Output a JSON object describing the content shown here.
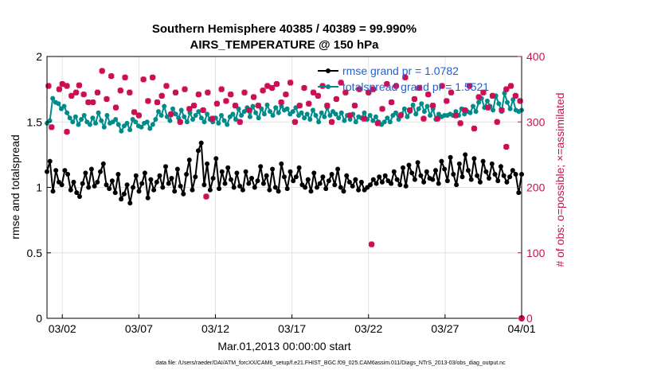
{
  "chart_data": {
    "type": "line",
    "title": "Southern Hemisphere 40385 / 40389 = 99.990%",
    "subtitle": "AIRS_TEMPERATURE @ 150 hPa",
    "xlabel": "Mar.01,2013 00:00:00 start",
    "ylabel_left": "rmse and totalspread",
    "ylabel_right": "# of obs: o=possible; ×=assimilated",
    "xlim": [
      0,
      31
    ],
    "ylim_left": [
      0,
      2
    ],
    "ylim_right": [
      0,
      400
    ],
    "x_ticks": [
      {
        "value": 1,
        "label": "03/02"
      },
      {
        "value": 6,
        "label": "03/07"
      },
      {
        "value": 11,
        "label": "03/12"
      },
      {
        "value": 16,
        "label": "03/17"
      },
      {
        "value": 21,
        "label": "03/22"
      },
      {
        "value": 26,
        "label": "03/27"
      },
      {
        "value": 31,
        "label": "04/01"
      }
    ],
    "y_ticks_left": [
      "0",
      "0.5",
      "1",
      "1.5",
      "2"
    ],
    "y_ticks_right": [
      "0",
      "100",
      "200",
      "300",
      "400"
    ],
    "grid": true,
    "legend_position": "top-right",
    "series": [
      {
        "name": "rmse grand pr = 1.0782",
        "axis": "left",
        "color": "#000000",
        "values": [
          1.12,
          1.2,
          0.97,
          1.13,
          1.04,
          1.02,
          1.13,
          1.1,
          0.98,
          1.04,
          0.96,
          0.93,
          1.03,
          1.11,
          1.0,
          1.14,
          1.01,
          1.04,
          1.12,
          1.18,
          1.02,
          0.99,
          1.05,
          0.96,
          1.1,
          0.91,
          0.95,
          1.02,
          0.88,
          1.0,
          1.09,
          0.97,
          1.03,
          1.11,
          0.92,
          1.06,
          0.98,
          1.04,
          1.09,
          1.0,
          1.16,
          1.03,
          1.07,
          0.97,
          1.14,
          1.01,
          0.95,
          1.1,
          1.21,
          0.98,
          1.08,
          1.28,
          1.34,
          1.02,
          1.18,
          0.98,
          1.07,
          1.22,
          0.99,
          1.12,
          1.03,
          1.15,
          1.06,
          1.0,
          1.11,
          1.01,
          0.98,
          1.12,
          1.03,
          1.07,
          1.0,
          1.05,
          1.16,
          1.03,
          1.09,
          0.98,
          1.14,
          1.0,
          0.97,
          1.18,
          1.08,
          0.99,
          1.12,
          1.05,
          1.08,
          1.15,
          1.02,
          1.0,
          1.06,
          0.97,
          1.11,
          1.0,
          1.03,
          1.08,
          0.99,
          1.05,
          1.1,
          1.02,
          1.14,
          1.0,
          0.97,
          1.09,
          1.04,
          1.01,
          1.06,
          0.98,
          1.04,
          0.98,
          1.0,
          1.02,
          1.06,
          1.03,
          1.08,
          1.04,
          1.09,
          1.05,
          1.03,
          1.12,
          1.06,
          1.02,
          1.15,
          1.01,
          1.17,
          1.11,
          1.06,
          1.19,
          1.09,
          1.04,
          1.12,
          1.07,
          1.06,
          1.13,
          1.03,
          1.2,
          1.14,
          1.05,
          1.23,
          1.1,
          1.02,
          1.18,
          1.08,
          1.25,
          1.13,
          1.06,
          1.22,
          1.09,
          1.04,
          1.2,
          1.12,
          1.07,
          1.18,
          1.1,
          1.05,
          1.16,
          1.09,
          1.04,
          1.08,
          1.13,
          1.1,
          0.96,
          1.1
        ]
      },
      {
        "name": "totalspread grand pr = 1.5521",
        "axis": "left",
        "color": "#008b8b",
        "values": [
          1.49,
          1.51,
          1.68,
          1.65,
          1.64,
          1.6,
          1.62,
          1.57,
          1.53,
          1.5,
          1.54,
          1.48,
          1.52,
          1.55,
          1.5,
          1.48,
          1.53,
          1.49,
          1.57,
          1.51,
          1.46,
          1.55,
          1.49,
          1.5,
          1.52,
          1.48,
          1.43,
          1.47,
          1.49,
          1.44,
          1.52,
          1.5,
          1.47,
          1.46,
          1.49,
          1.5,
          1.45,
          1.48,
          1.52,
          1.58,
          1.55,
          1.62,
          1.54,
          1.51,
          1.6,
          1.56,
          1.53,
          1.59,
          1.54,
          1.5,
          1.57,
          1.52,
          1.55,
          1.58,
          1.53,
          1.5,
          1.56,
          1.52,
          1.5,
          1.53,
          1.49,
          1.55,
          1.51,
          1.48,
          1.54,
          1.56,
          1.52,
          1.6,
          1.55,
          1.58,
          1.61,
          1.54,
          1.62,
          1.57,
          1.53,
          1.6,
          1.56,
          1.63,
          1.58,
          1.55,
          1.61,
          1.57,
          1.62,
          1.59,
          1.6,
          1.56,
          1.58,
          1.61,
          1.55,
          1.57,
          1.53,
          1.56,
          1.52,
          1.59,
          1.55,
          1.5,
          1.57,
          1.54,
          1.61,
          1.55,
          1.58,
          1.56,
          1.53,
          1.57,
          1.51,
          1.55,
          1.52,
          1.56,
          1.5,
          1.54,
          1.53,
          1.57,
          1.52,
          1.55,
          1.51,
          1.54,
          1.5,
          1.48,
          1.5,
          1.53,
          1.5,
          1.55,
          1.57,
          1.52,
          1.56,
          1.6,
          1.54,
          1.58,
          1.63,
          1.56,
          1.6,
          1.64,
          1.58,
          1.62,
          1.55,
          1.6,
          1.52,
          1.56,
          1.54,
          1.55,
          1.55,
          1.56,
          1.55,
          1.58,
          1.55,
          1.6,
          1.56,
          1.58,
          1.57,
          1.62,
          1.58,
          1.65,
          1.68,
          1.61,
          1.66,
          1.62,
          1.59,
          1.7,
          1.64,
          1.58,
          1.72,
          1.65,
          1.6,
          1.67,
          1.59,
          1.58,
          1.59
        ]
      },
      {
        "name": "# of obs possible",
        "axis": "right",
        "color": "#cc0f55",
        "x": [
          0.1,
          0.3,
          0.8,
          1.0,
          1.3,
          1.6,
          1.9,
          2.1,
          2.4,
          2.7,
          3.0,
          3.3,
          3.6,
          3.9,
          4.2,
          4.5,
          4.8,
          5.1,
          5.4,
          5.7,
          6.0,
          6.3,
          6.6,
          6.9,
          7.2,
          7.5,
          7.8,
          8.1,
          8.4,
          8.7,
          9.0,
          9.3,
          9.6,
          9.9,
          10.2,
          10.5,
          10.8,
          11.1,
          11.4,
          11.7,
          12.0,
          12.3,
          12.6,
          12.9,
          13.2,
          13.5,
          13.8,
          14.1,
          14.4,
          14.7,
          15.0,
          15.3,
          15.6,
          15.9,
          16.2,
          16.5,
          16.8,
          17.1,
          17.4,
          17.7,
          18.0,
          18.3,
          18.6,
          18.9,
          19.2,
          19.5,
          19.8,
          20.1,
          20.4,
          20.7,
          21.0,
          21.3,
          21.6,
          21.9,
          22.2,
          22.5,
          22.8,
          23.1,
          23.4,
          23.7,
          24.0,
          24.3,
          24.6,
          24.9,
          25.2,
          25.5,
          25.8,
          26.1,
          26.4,
          26.7,
          27.0,
          27.3,
          27.6,
          27.9,
          28.2,
          28.5,
          28.8,
          29.1,
          29.4,
          29.7,
          30.0,
          30.3,
          30.6,
          30.9,
          1.3,
          10.4,
          21.2,
          30.0
        ],
        "values": [
          355,
          292,
          350,
          358,
          355,
          340,
          345,
          356,
          342,
          330,
          330,
          345,
          378,
          335,
          370,
          322,
          348,
          368,
          345,
          315,
          310,
          365,
          332,
          368,
          330,
          340,
          355,
          312,
          345,
          300,
          350,
          320,
          325,
          342,
          318,
          345,
          305,
          328,
          350,
          332,
          342,
          325,
          300,
          345,
          318,
          338,
          325,
          348,
          355,
          352,
          358,
          330,
          342,
          360,
          300,
          325,
          352,
          328,
          345,
          340,
          355,
          325,
          300,
          335,
          360,
          345,
          310,
          325,
          350,
          305,
          345,
          350,
          298,
          320,
          358,
          330,
          355,
          310,
          368,
          318,
          335,
          352,
          305,
          342,
          325,
          305,
          355,
          332,
          345,
          310,
          298,
          318,
          355,
          290,
          338,
          345,
          322,
          340,
          300,
          318,
          350,
          355,
          340,
          332,
          285,
          186,
          113,
          262
        ]
      },
      {
        "name": "# of obs assimilated",
        "axis": "right",
        "color": "#cc0f55",
        "x": [
          31
        ],
        "values": [
          0
        ]
      }
    ],
    "footer": "data file: /Users/raeder/DAI/ATM_forcXX/CAM6_setup/f.e21.FHIST_BGC.f09_025.CAM6assim.011/Diags_NTrS_2013-03/obs_diag_output.nc"
  }
}
